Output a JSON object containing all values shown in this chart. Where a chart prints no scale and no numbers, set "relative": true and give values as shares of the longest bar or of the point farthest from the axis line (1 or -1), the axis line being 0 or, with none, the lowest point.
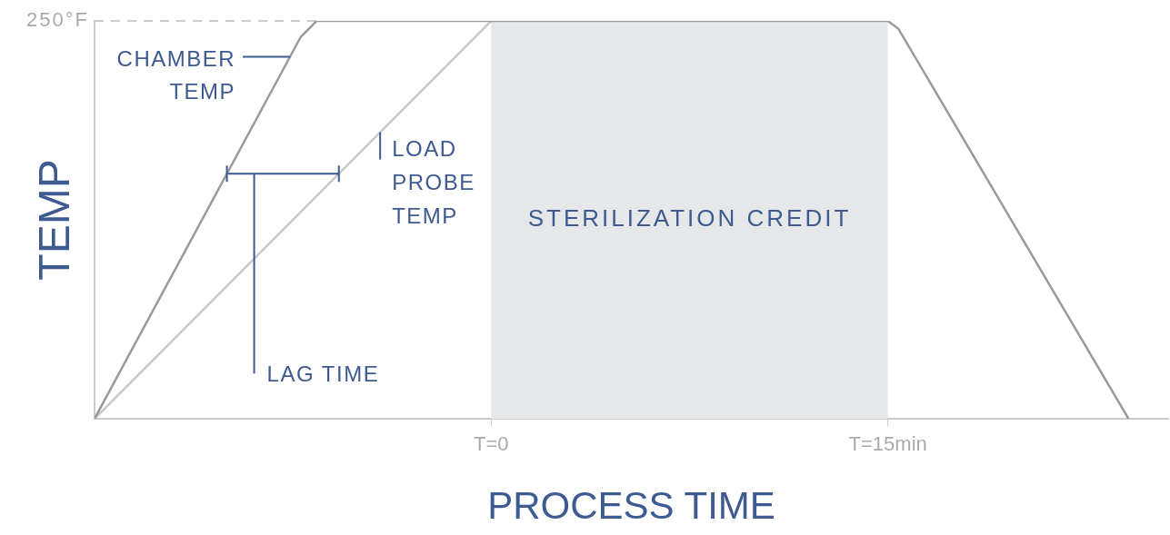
{
  "chart_data": {
    "type": "line",
    "xlabel": "PROCESS TIME",
    "ylabel": "TEMP",
    "relative": true,
    "xlim": [
      -15,
      25.6
    ],
    "xticks": [
      {
        "value": 0,
        "label": "T=0"
      },
      {
        "value": 15,
        "label": "T=15min"
      }
    ],
    "series": [
      {
        "name": "CHAMBER TEMP",
        "color": "#9a9a9a",
        "x": [
          -15,
          -7.2,
          -6.6,
          15,
          15.4,
          24.1
        ],
        "values": [
          0,
          0.96,
          1,
          1,
          0.98,
          0
        ]
      },
      {
        "name": "LOAD PROBE TEMP",
        "color": "#c8c8c8",
        "x": [
          -15,
          0
        ],
        "values": [
          0,
          1
        ]
      }
    ],
    "bands": [
      {
        "axis": "x",
        "from": 0,
        "to": 15,
        "label": "STERILIZATION CREDIT",
        "color": "#e6e7e9"
      }
    ],
    "ref_lines": [
      {
        "axis": "y",
        "value": 1,
        "label": "250°F",
        "color": "#cccccc",
        "line_style": "dashed"
      }
    ],
    "annotations": [
      "LAG TIME"
    ],
    "grid": false,
    "legend": false,
    "marker": "none",
    "line_style": "solid"
  }
}
